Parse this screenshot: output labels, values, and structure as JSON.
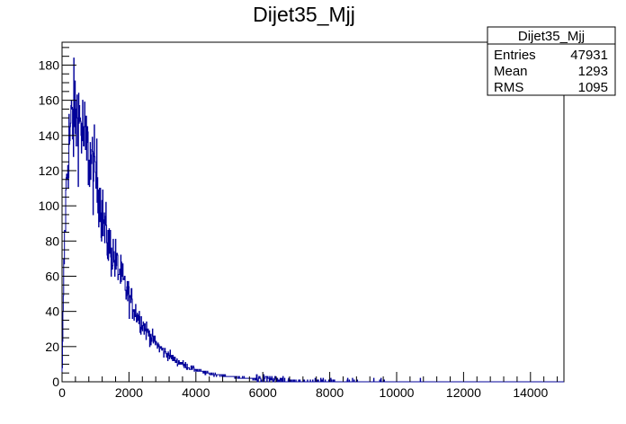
{
  "chart_data": {
    "type": "histogram",
    "title": "Dijet35_Mjj",
    "xlabel": "",
    "ylabel": "",
    "xlim": [
      0,
      15000
    ],
    "ylim": [
      0,
      193
    ],
    "x_ticks": [
      "0",
      "2000",
      "4000",
      "6000",
      "8000",
      "10000",
      "12000",
      "14000"
    ],
    "y_ticks": [
      "0",
      "20",
      "40",
      "60",
      "80",
      "100",
      "120",
      "140",
      "160",
      "180"
    ],
    "grid": false,
    "line_color": "#000099",
    "bin_width": 12,
    "envelope": {
      "x": [
        0,
        50,
        100,
        150,
        200,
        300,
        400,
        500,
        600,
        700,
        800,
        900,
        1000,
        1100,
        1200,
        1300,
        1400,
        1500,
        1600,
        1800,
        2000,
        2200,
        2400,
        2600,
        2800,
        3000,
        3200,
        3400,
        3600,
        3800,
        4000,
        4300,
        4600,
        5000,
        5500,
        6000,
        6500,
        7000,
        7500,
        8000,
        9000,
        10000,
        12000,
        15000
      ],
      "y": [
        0,
        60,
        95,
        120,
        135,
        148,
        152,
        150,
        143,
        135,
        128,
        122,
        118,
        110,
        95,
        85,
        78,
        73,
        68,
        58,
        48,
        40,
        33,
        27,
        22,
        18,
        15,
        12,
        10,
        8,
        7,
        5,
        4,
        3,
        2,
        1.2,
        0.8,
        0.5,
        0.3,
        0.2,
        0.1,
        0.05,
        0.02,
        0
      ]
    },
    "noise_amplitude": 0.14,
    "stats_box": {
      "name": "Dijet35_Mjj",
      "rows": [
        {
          "label": "Entries",
          "value": "47931"
        },
        {
          "label": "Mean",
          "value": "1293"
        },
        {
          "label": "RMS",
          "value": "1095"
        }
      ]
    }
  }
}
